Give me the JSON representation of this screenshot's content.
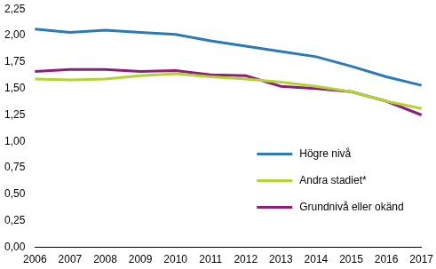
{
  "chart_data": {
    "type": "line",
    "categories": [
      "2006",
      "2007",
      "2008",
      "2009",
      "2010",
      "2011",
      "2012",
      "2013",
      "2014",
      "2015",
      "2016",
      "2017"
    ],
    "series": [
      {
        "name": "Högre nivå",
        "color": "#2a7ab5",
        "values": [
          2.06,
          2.03,
          2.05,
          2.03,
          2.01,
          1.95,
          1.9,
          1.85,
          1.8,
          1.71,
          1.61,
          1.53
        ]
      },
      {
        "name": "Andra stadiet*",
        "color": "#b3d335",
        "values": [
          1.59,
          1.58,
          1.59,
          1.62,
          1.64,
          1.61,
          1.59,
          1.56,
          1.52,
          1.47,
          1.38,
          1.31
        ]
      },
      {
        "name": "Grundnivå eller okänd",
        "color": "#8c1f7a",
        "values": [
          1.66,
          1.68,
          1.68,
          1.66,
          1.67,
          1.63,
          1.62,
          1.52,
          1.5,
          1.47,
          1.38,
          1.25
        ]
      }
    ],
    "ylim": [
      0,
      2.25
    ],
    "yticks": [
      {
        "value": 0,
        "label": "0,00"
      },
      {
        "value": 0.25,
        "label": "0,25"
      },
      {
        "value": 0.5,
        "label": "0,50"
      },
      {
        "value": 0.75,
        "label": "0,75"
      },
      {
        "value": 1,
        "label": "1,00"
      },
      {
        "value": 1.25,
        "label": "1,25"
      },
      {
        "value": 1.5,
        "label": "1,50"
      },
      {
        "value": 1.75,
        "label": "1,75"
      },
      {
        "value": 2,
        "label": "2,00"
      },
      {
        "value": 2.25,
        "label": "2,25"
      }
    ],
    "grid": false,
    "legend": "lower right"
  }
}
